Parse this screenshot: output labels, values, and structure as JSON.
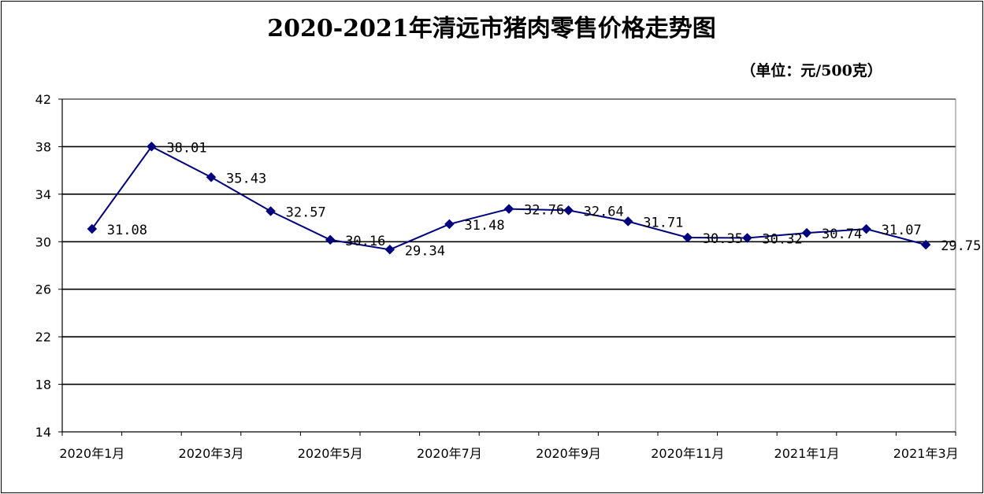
{
  "chart_data": {
    "type": "line",
    "title": "2020-2021年清远市猪肉零售价格走势图",
    "unit_label": "（单位：元/500克）",
    "ylim": [
      14,
      42
    ],
    "yticks": [
      14,
      18,
      22,
      26,
      30,
      34,
      38,
      42
    ],
    "xtick_labels": [
      "2020年1月",
      "2020年3月",
      "2020年5月",
      "2020年7月",
      "2020年9月",
      "2020年11月",
      "2021年1月",
      "2021年3月"
    ],
    "grid": true,
    "line_color": "#00007f",
    "series": [
      {
        "values": [
          31.08,
          38.01,
          35.43,
          32.57,
          30.16,
          29.34,
          31.48,
          32.76,
          32.64,
          31.71,
          30.35,
          30.32,
          30.74,
          31.07,
          29.75
        ],
        "labels": [
          "31.08",
          "38.01",
          "35.43",
          "32.57",
          "30.16",
          "29.34",
          "31.48",
          "32.76",
          "32.64",
          "31.71",
          "30.35",
          "30.32",
          "30.74",
          "31.07",
          "29.75"
        ]
      }
    ]
  }
}
